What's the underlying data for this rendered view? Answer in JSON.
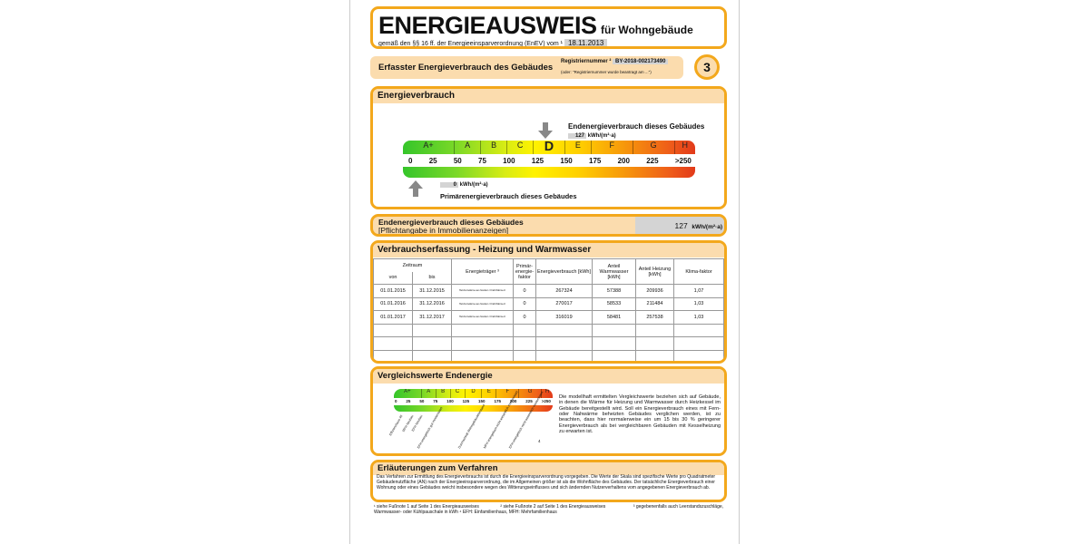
{
  "header": {
    "title": "ENERGIEAUSWEIS",
    "subtitle": "für Wohngebäude",
    "legal": "gemäß den §§ 16 ff. der Energieeinsparverordnung (EnEV) vom ¹",
    "date": "18.11.2013"
  },
  "registration": {
    "section_title": "Erfasster Energieverbrauch des Gebäudes",
    "label": "Registriernummer ²",
    "number": "BY-2018-002173490",
    "note": "(oder: \"Registriernummer wurde beantragt am ...\")",
    "page_number": "3"
  },
  "energieverbrauch": {
    "title": "Energieverbrauch",
    "end_label": "Endenergieverbrauch dieses Gebäudes",
    "end_value": "127",
    "unit": "kWh/(m²·a)",
    "primary_label": "Primärenergieverbrauch dieses Gebäudes",
    "primary_value": "0",
    "classes": [
      "A+",
      "A",
      "B",
      "C",
      "D",
      "E",
      "F",
      "G",
      "H"
    ],
    "active_class": "D",
    "ticks": [
      "0",
      "25",
      "50",
      "75",
      "100",
      "125",
      "150",
      "175",
      "200",
      "225",
      ">250"
    ]
  },
  "endenergie_box": {
    "title": "Endenergieverbrauch dieses Gebäudes",
    "subtitle": "[Pflichtangabe in Immobilienanzeigen]",
    "value": "127",
    "unit": "kWh/(m²·a)"
  },
  "verbrauch": {
    "title": "Verbrauchserfassung - Heizung und Warmwasser",
    "headers": {
      "zeitraum": "Zeitraum",
      "von": "von",
      "bis": "bis",
      "traeger": "Energieträger ³",
      "primaer": "Primär-energie-faktor",
      "verbrauch": "Energieverbrauch [kWh]",
      "warmwasser": "Anteil Warmwasser [kWh]",
      "heizung": "Anteil Heizung [kWh]",
      "klima": "Klima-faktor"
    },
    "rows": [
      {
        "von": "01.01.2015",
        "bis": "31.12.2015",
        "traeger": "Heil-Fernwärme aus fossilem / Kraft-Wärme-K",
        "primaer": "0",
        "verbrauch": "267324",
        "warmwasser": "57388",
        "heizung": "209936",
        "klima": "1,07"
      },
      {
        "von": "01.01.2016",
        "bis": "31.12.2016",
        "traeger": "Heil-Fernwärme aus fossilem / Kraft-Wärme-K",
        "primaer": "0",
        "verbrauch": "270017",
        "warmwasser": "58533",
        "heizung": "211484",
        "klima": "1,03"
      },
      {
        "von": "01.01.2017",
        "bis": "31.12.2017",
        "traeger": "Heil-Fernwärme aus fossilem / Kraft-Wärme-K",
        "primaer": "0",
        "verbrauch": "316019",
        "warmwasser": "58481",
        "heizung": "257538",
        "klima": "1,03"
      }
    ]
  },
  "vergleich": {
    "title": "Vergleichswerte Endenergie",
    "labels": [
      "Effizienzhaus 40",
      "MFH Neubau",
      "EFH Neubau",
      "EFH energetisch gut modernisiert",
      "Durchschnitt Wohngebäudebestand",
      "MFH energetisch nicht wesentlich modernisiert",
      "EFH energetisch nicht wesentlich modernisiert"
    ],
    "footnote_mark": "4",
    "text": "Die modellhaft ermittelten Vergleichswerte beziehen sich auf Gebäude, in denen die Wärme für Heizung und Warmwasser durch Heizkessel im Gebäude bereitgestellt wird. Soll ein Energieverbrauch eines mit Fern- oder Nahwärme beheizten Gebäudes verglichen werden, ist zu beachten, dass hier normalerweise ein um 15 bis 30 % geringerer Energieverbrauch als bei vergleichbaren Gebäuden mit Kesselheizung zu erwarten ist."
  },
  "erlaeuterungen": {
    "title": "Erläuterungen zum Verfahren",
    "text": "Das Verfahren zur Ermittlung des Energieverbrauchs ist durch die Energieeinsparverordnung vorgegeben. Die Werte der Skala sind spezifische Werte pro Quadratmeter Gebäudenutzfläche (AN) nach der Energieeinsparverordnung, die im Allgemeinen größer ist als die Wohnfläche des Gebäudes. Der tatsächliche Energieverbrauch einer Wohnung oder eines Gebäudes weicht insbesondere wegen des Witterungseinflusses und sich ändernden Nutzerverhaltens vom angegebenen Energieverbrauch ab."
  },
  "footnotes": {
    "f1": "¹ siehe Fußnote 1 auf Seite 1 des Energieausweises",
    "f2": "² siehe Fußnote 2 auf Seite 1 des Energieausweises",
    "f3": "³ gegebenenfalls auch Leerstandszuschläge, Warmwasser- oder Kühlpauschale in kWh",
    "f4": "⁴ EFH: Einfamilienhaus, MFH: Mehrfamilienhaus"
  },
  "colors": {
    "accent": "#f3a81c",
    "header_fill": "#fbdcae",
    "value_fill": "#d4d4d4"
  }
}
